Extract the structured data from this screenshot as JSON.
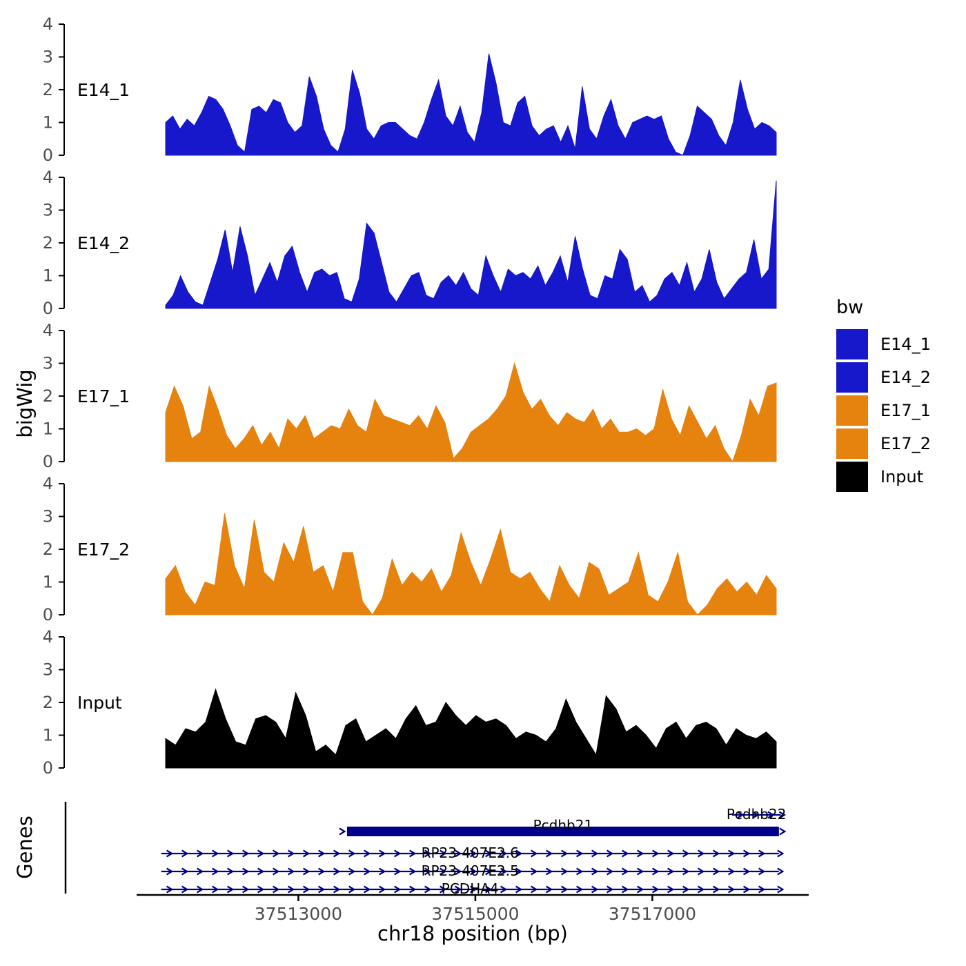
{
  "figure": {
    "ylabel": "bigWig",
    "genes_panel_label": "Genes",
    "xlabel": "chr18 position (bp)"
  },
  "chart_data": {
    "type": "area",
    "title": "",
    "xlabel": "chr18 position (bp)",
    "ylabel": "bigWig",
    "xlim": [
      37511500,
      37518400
    ],
    "x_ticks": [
      37513000,
      37515000,
      37517000
    ],
    "ylim": [
      0,
      4
    ],
    "y_ticks": [
      0,
      1,
      2,
      3,
      4
    ],
    "grid": false,
    "legend": {
      "title": "bw",
      "position": "right",
      "entries": [
        {
          "label": "E14_1",
          "color": "#1717CB"
        },
        {
          "label": "E14_2",
          "color": "#1717CB"
        },
        {
          "label": "E17_1",
          "color": "#E6820E"
        },
        {
          "label": "E17_2",
          "color": "#E6820E"
        },
        {
          "label": "Input",
          "color": "#000000"
        }
      ]
    },
    "tracks": [
      {
        "name": "E14_1",
        "color": "#1717CB",
        "values": [
          1.0,
          1.2,
          0.8,
          1.1,
          0.9,
          1.3,
          1.8,
          1.7,
          1.4,
          0.9,
          0.3,
          0.1,
          1.4,
          1.5,
          1.3,
          1.7,
          1.6,
          1.0,
          0.7,
          0.9,
          2.4,
          1.8,
          0.8,
          0.3,
          0.1,
          0.8,
          2.6,
          1.9,
          0.8,
          0.5,
          0.9,
          1.0,
          1.0,
          0.8,
          0.6,
          0.5,
          1.0,
          1.7,
          2.3,
          1.2,
          0.9,
          1.5,
          0.7,
          0.4,
          1.3,
          3.1,
          2.2,
          1.0,
          0.9,
          1.6,
          1.8,
          0.9,
          0.6,
          0.8,
          0.9,
          0.4,
          0.9,
          0.2,
          2.1,
          0.8,
          0.5,
          1.2,
          1.7,
          0.9,
          0.5,
          1.0,
          1.1,
          1.2,
          1.1,
          1.2,
          0.5,
          0.1,
          0.0,
          0.6,
          1.5,
          1.3,
          1.1,
          0.6,
          0.3,
          1.0,
          2.3,
          1.4,
          0.8,
          1.0,
          0.9,
          0.7
        ]
      },
      {
        "name": "E14_2",
        "color": "#1717CB",
        "values": [
          0.1,
          0.4,
          1.0,
          0.5,
          0.2,
          0.1,
          0.8,
          1.5,
          2.4,
          1.1,
          2.5,
          1.6,
          0.4,
          0.9,
          1.4,
          0.8,
          1.6,
          1.9,
          1.1,
          0.5,
          1.1,
          1.2,
          1.0,
          1.1,
          0.3,
          0.2,
          0.9,
          2.6,
          2.3,
          1.4,
          0.5,
          0.2,
          0.6,
          1.0,
          1.1,
          0.4,
          0.3,
          0.8,
          1.0,
          0.7,
          1.1,
          0.6,
          0.4,
          1.6,
          1.0,
          0.5,
          1.2,
          1.0,
          1.1,
          0.9,
          1.3,
          0.7,
          1.1,
          1.6,
          0.8,
          2.2,
          1.2,
          0.4,
          0.3,
          1.0,
          0.9,
          1.8,
          1.5,
          0.5,
          0.7,
          0.2,
          0.4,
          0.9,
          1.1,
          0.7,
          1.4,
          0.5,
          0.9,
          1.8,
          0.8,
          0.3,
          0.6,
          0.9,
          1.1,
          2.1,
          0.9,
          1.2,
          3.9
        ]
      },
      {
        "name": "E17_1",
        "color": "#E6820E",
        "values": [
          1.5,
          2.3,
          1.7,
          0.7,
          0.9,
          2.3,
          1.6,
          0.8,
          0.4,
          0.7,
          1.1,
          0.5,
          0.9,
          0.4,
          1.3,
          1.0,
          1.4,
          0.7,
          0.9,
          1.1,
          1.0,
          1.6,
          1.1,
          0.9,
          1.9,
          1.4,
          1.3,
          1.2,
          1.1,
          1.4,
          1.0,
          1.7,
          1.2,
          0.1,
          0.4,
          0.9,
          1.1,
          1.3,
          1.6,
          2.0,
          3.0,
          2.1,
          1.6,
          1.9,
          1.4,
          1.1,
          1.5,
          1.3,
          1.2,
          1.6,
          1.0,
          1.3,
          0.9,
          0.9,
          1.0,
          0.8,
          1.0,
          2.2,
          1.3,
          0.8,
          1.7,
          1.2,
          0.7,
          1.1,
          0.4,
          0.0,
          0.8,
          1.9,
          1.4,
          2.3,
          2.4
        ]
      },
      {
        "name": "E17_2",
        "color": "#E6820E",
        "values": [
          1.1,
          1.5,
          0.7,
          0.3,
          1.0,
          0.9,
          3.1,
          1.5,
          0.8,
          2.9,
          1.3,
          1.0,
          2.2,
          1.6,
          2.7,
          1.3,
          1.5,
          0.7,
          1.9,
          1.9,
          0.4,
          0.0,
          0.5,
          1.7,
          0.9,
          1.3,
          1.0,
          1.4,
          0.7,
          1.2,
          2.5,
          1.6,
          0.9,
          1.7,
          2.6,
          1.3,
          1.1,
          1.3,
          0.8,
          0.4,
          1.5,
          0.9,
          0.5,
          1.6,
          1.4,
          0.6,
          0.8,
          1.0,
          1.9,
          0.6,
          0.4,
          1.0,
          1.9,
          0.4,
          0.0,
          0.3,
          0.8,
          1.1,
          0.7,
          1.0,
          0.6,
          1.2,
          0.8
        ]
      },
      {
        "name": "Input",
        "color": "#000000",
        "values": [
          0.9,
          0.7,
          1.2,
          1.1,
          1.4,
          2.4,
          1.5,
          0.8,
          0.7,
          1.5,
          1.6,
          1.4,
          0.9,
          2.3,
          1.6,
          0.5,
          0.7,
          0.4,
          1.3,
          1.5,
          0.8,
          1.0,
          1.2,
          0.9,
          1.5,
          1.9,
          1.3,
          1.4,
          2.0,
          1.6,
          1.3,
          1.6,
          1.4,
          1.5,
          1.3,
          0.9,
          1.1,
          1.0,
          0.8,
          1.2,
          2.1,
          1.4,
          0.9,
          0.4,
          2.2,
          1.8,
          1.1,
          1.3,
          1.0,
          0.6,
          1.2,
          1.4,
          0.9,
          1.3,
          1.4,
          1.2,
          0.7,
          1.2,
          1.0,
          0.9,
          1.1,
          0.8
        ]
      }
    ],
    "genes": {
      "panel_label": "Genes",
      "color": "#00008B",
      "items": [
        {
          "label": "Pcdhb22",
          "style": "arrow-line",
          "start": 37517900,
          "end": 37518450
        },
        {
          "label": "Pcdhb21",
          "style": "thick-box",
          "start": 37513550,
          "end": 37518430
        },
        {
          "label": "RP23-407E2.6",
          "style": "arrow-line",
          "start": 37511450,
          "end": 37518430
        },
        {
          "label": "RP23-407E2.5",
          "style": "arrow-line",
          "start": 37511450,
          "end": 37518430
        },
        {
          "label": "PCDHA4",
          "style": "arrow-line",
          "start": 37511450,
          "end": 37518430
        }
      ]
    }
  }
}
